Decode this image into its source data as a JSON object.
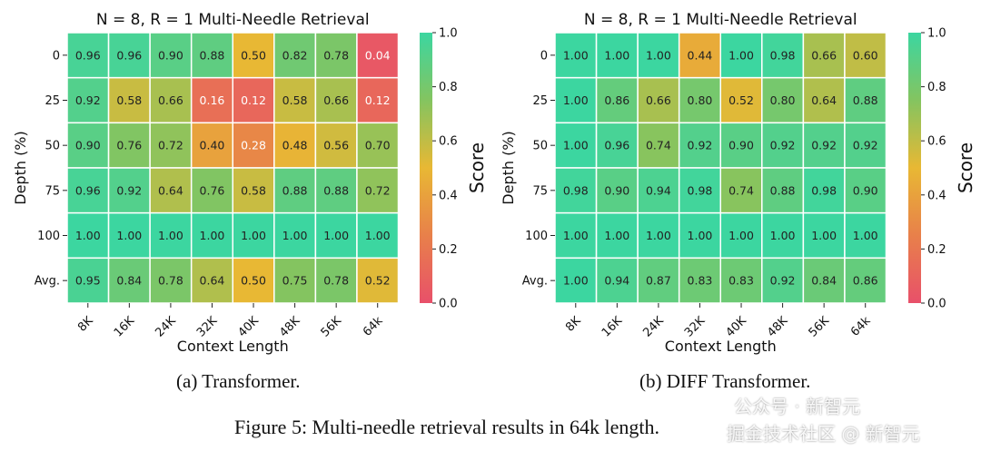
{
  "chart_data": [
    {
      "type": "heatmap",
      "title": "N = 8, R = 1 Multi-Needle Retrieval",
      "xlabel": "Context Length",
      "ylabel": "Depth (%)",
      "colorbar_label": "Score",
      "colorbar_range": [
        0,
        1
      ],
      "colorbar_ticks": [
        "0.0",
        "0.2",
        "0.4",
        "0.6",
        "0.8",
        "1.0"
      ],
      "x": [
        "8K",
        "16K",
        "24K",
        "32K",
        "40K",
        "48K",
        "56K",
        "64k"
      ],
      "y": [
        "0",
        "25",
        "50",
        "75",
        "100",
        "Avg."
      ],
      "values": [
        [
          0.96,
          0.96,
          0.9,
          0.88,
          0.5,
          0.82,
          0.78,
          0.04
        ],
        [
          0.92,
          0.58,
          0.66,
          0.16,
          0.12,
          0.58,
          0.66,
          0.12
        ],
        [
          0.9,
          0.76,
          0.72,
          0.4,
          0.28,
          0.48,
          0.56,
          0.7
        ],
        [
          0.96,
          0.92,
          0.64,
          0.76,
          0.58,
          0.88,
          0.88,
          0.72
        ],
        [
          1.0,
          1.0,
          1.0,
          1.0,
          1.0,
          1.0,
          1.0,
          1.0
        ],
        [
          0.95,
          0.84,
          0.78,
          0.64,
          0.5,
          0.75,
          0.78,
          0.52
        ]
      ],
      "caption": "(a) Transformer."
    },
    {
      "type": "heatmap",
      "title": "N = 8, R = 1 Multi-Needle Retrieval",
      "xlabel": "Context Length",
      "ylabel": "Depth (%)",
      "colorbar_label": "Score",
      "colorbar_range": [
        0,
        1
      ],
      "colorbar_ticks": [
        "0.0",
        "0.2",
        "0.4",
        "0.6",
        "0.8",
        "1.0"
      ],
      "x": [
        "8K",
        "16K",
        "24K",
        "32K",
        "40K",
        "48K",
        "56K",
        "64k"
      ],
      "y": [
        "0",
        "25",
        "50",
        "75",
        "100",
        "Avg."
      ],
      "values": [
        [
          1.0,
          1.0,
          1.0,
          0.44,
          1.0,
          0.98,
          0.66,
          0.6
        ],
        [
          1.0,
          0.86,
          0.66,
          0.8,
          0.52,
          0.8,
          0.64,
          0.88
        ],
        [
          1.0,
          0.96,
          0.74,
          0.92,
          0.9,
          0.92,
          0.92,
          0.92
        ],
        [
          0.98,
          0.9,
          0.94,
          0.98,
          0.74,
          0.88,
          0.98,
          0.9
        ],
        [
          1.0,
          1.0,
          1.0,
          1.0,
          1.0,
          1.0,
          1.0,
          1.0
        ],
        [
          1.0,
          0.94,
          0.87,
          0.83,
          0.83,
          0.92,
          0.84,
          0.86
        ]
      ],
      "caption": "(b) DIFF Transformer."
    }
  ],
  "figure_caption": "Figure 5: Multi-needle retrieval results in 64k length.",
  "watermark": {
    "line1": "公众号 · 新智元",
    "line2": "掘金技术社区 @ 新智元"
  }
}
